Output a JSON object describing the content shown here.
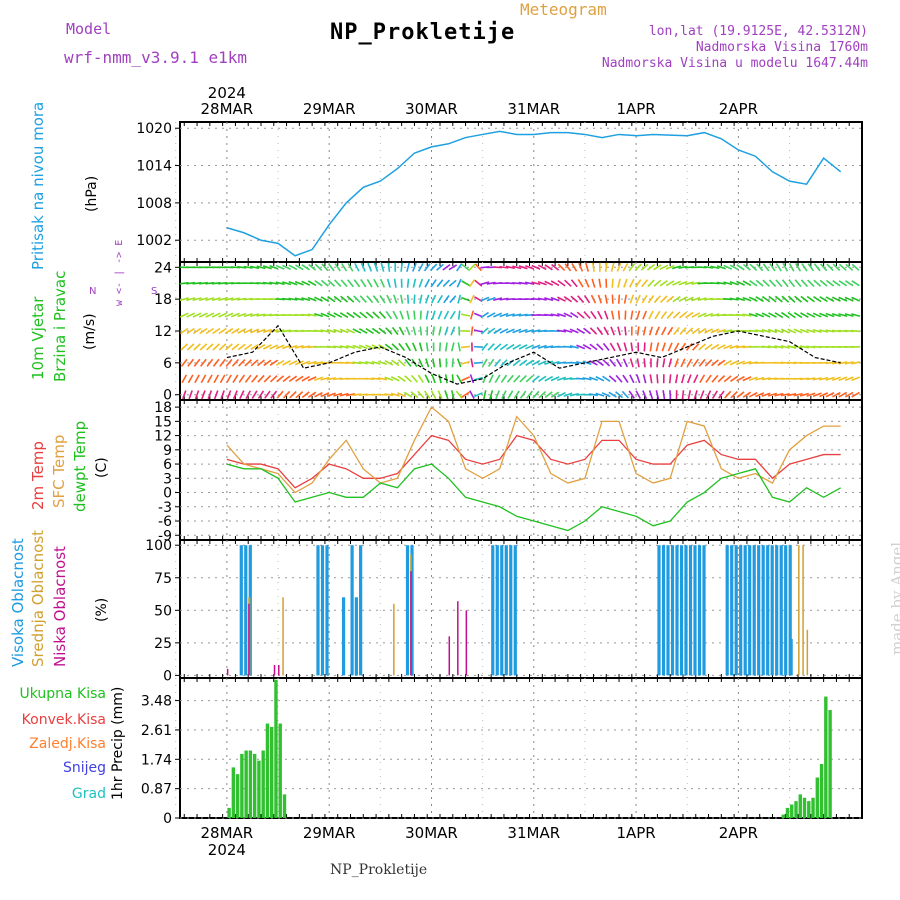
{
  "header": {
    "model_label": "Model",
    "model_name": "wrf-nmm_v3.9.1 e1km",
    "title": "NP_Prokletije",
    "meteogram": "Meteogram",
    "lonlat": "lon,lat (19.9125E, 42.5312N)",
    "altitude": "Nadmorska Visina 1760m",
    "model_altitude": "Nadmorska Visina u modelu 1647.44m"
  },
  "footer": "NP_Prokletije",
  "made_by": "made by Angel",
  "panel_labels": {
    "pressure": "Pritisak na nivou mora",
    "pressure_unit": "(hPa)",
    "wind_1": "10m Vjetar",
    "wind_2": "Brzina i Pravac",
    "wind_unit": "(m/s)",
    "compass": "w <- | -> E",
    "compass_n": "N",
    "compass_s": "S",
    "temp_1": "2m Temp",
    "temp_2": "SFC Temp",
    "temp_3": "dewpt Temp",
    "temp_unit": "(C)",
    "cloud_high": "Visoka Oblacnost",
    "cloud_mid": "Srednja Oblacnost",
    "cloud_low": "Niska Oblacnost",
    "cloud_unit": "(%)",
    "precip_unit": "1hr Precip (mm)",
    "precip_total": "Ukupna Kisa",
    "precip_conv": "Konvek.Kisa",
    "precip_frz": "Zaledj.Kisa",
    "precip_snow": "Snijeg",
    "precip_grad": "Grad"
  },
  "colors": {
    "pressure": "#1fa0e0",
    "temp2m": "#e84040",
    "sfc": "#e0a040",
    "dewpt": "#20c020",
    "cloud_high": "#1f9be0",
    "cloud_mid": "#d0a030",
    "cloud_low": "#c01090",
    "precip": "#30c030",
    "label_purple": "#a040c0"
  },
  "chart_data": [
    {
      "type": "line",
      "name": "pressure",
      "x_days": [
        "28MAR",
        "29MAR",
        "30MAR",
        "31MAR",
        "1APR",
        "2APR"
      ],
      "x_year": "2024",
      "yticks": [
        1002,
        1008,
        1014,
        1020
      ],
      "ylim": [
        998.5,
        1021
      ],
      "grid": true,
      "x_hours": [
        0,
        4,
        8,
        12,
        16,
        20,
        24,
        28,
        32,
        36,
        40,
        44,
        48,
        52,
        56,
        60,
        64,
        68,
        72,
        76,
        80,
        84,
        88,
        92,
        96,
        100,
        104,
        108,
        112,
        116,
        120,
        124,
        128,
        132,
        136,
        140,
        144
      ],
      "values": [
        1004,
        1003.2,
        1002,
        1001.5,
        999.5,
        1000.5,
        1004.5,
        1008,
        1010.5,
        1011.5,
        1013.5,
        1016,
        1017,
        1017.5,
        1018.5,
        1019,
        1019.5,
        1019,
        1019,
        1019.3,
        1019.3,
        1019,
        1018.5,
        1019,
        1018.8,
        1019,
        1018.9,
        1018.8,
        1019.3,
        1018.3,
        1016.5,
        1015.5,
        1013,
        1011.5,
        1011,
        1015.2,
        1013
      ]
    },
    {
      "type": "scatter",
      "name": "wind",
      "yticks": [
        0,
        6,
        12,
        18,
        24
      ],
      "ylim": [
        -1,
        25
      ],
      "grid": true,
      "x_hours": [
        0,
        6,
        12,
        18,
        24,
        30,
        36,
        42,
        48,
        54,
        60,
        66,
        72,
        78,
        84,
        90,
        96,
        102,
        108,
        114,
        120,
        126,
        132,
        138,
        144
      ],
      "speed": [
        7,
        8,
        13,
        5,
        6,
        8,
        9,
        7,
        4,
        2,
        3,
        6,
        8,
        5,
        6,
        7,
        8,
        7,
        9,
        11,
        12,
        11,
        10,
        7,
        6
      ],
      "direction_deg": [
        200,
        210,
        220,
        230,
        250,
        260,
        270,
        300,
        330,
        350,
        10,
        30,
        40,
        60,
        90,
        120,
        150,
        170,
        190,
        210,
        230,
        250,
        260,
        250,
        240
      ]
    },
    {
      "type": "line",
      "name": "temperature",
      "yticks": [
        -9,
        -6,
        -3,
        0,
        3,
        6,
        9,
        12,
        15,
        18
      ],
      "ylim": [
        -10,
        19.5
      ],
      "grid": true,
      "x_hours": [
        0,
        4,
        8,
        12,
        16,
        20,
        24,
        28,
        32,
        36,
        40,
        44,
        48,
        52,
        56,
        60,
        64,
        68,
        72,
        76,
        80,
        84,
        88,
        92,
        96,
        100,
        104,
        108,
        112,
        116,
        120,
        124,
        128,
        132,
        136,
        140,
        144
      ],
      "series": [
        {
          "name": "2m Temp",
          "values": [
            7,
            6,
            6,
            5,
            1,
            3,
            6,
            5,
            3,
            3,
            4,
            8,
            12,
            11,
            7,
            6,
            7,
            12,
            11,
            7,
            6,
            7,
            11,
            11,
            7,
            6,
            6,
            10,
            11,
            8,
            7,
            7,
            3,
            6,
            7,
            8,
            8
          ]
        },
        {
          "name": "SFC Temp",
          "values": [
            10,
            6,
            5,
            4,
            0,
            2,
            7,
            11,
            5,
            2,
            3,
            11,
            18,
            15,
            5,
            3,
            5,
            16,
            12,
            4,
            2,
            3,
            15,
            15,
            4,
            2,
            3,
            15,
            14,
            5,
            3,
            4,
            2,
            9,
            12,
            14,
            14
          ]
        },
        {
          "name": "dewpt Temp",
          "values": [
            6,
            5,
            5,
            3,
            -2,
            -1,
            0,
            -1,
            -1,
            2,
            1,
            5,
            6,
            3,
            -1,
            -2,
            -3,
            -5,
            -6,
            -7,
            -8,
            -6,
            -3,
            -4,
            -5,
            -7,
            -6,
            -2,
            0,
            3,
            4,
            5,
            -1,
            -2,
            1,
            -1,
            1
          ]
        }
      ]
    },
    {
      "type": "bar",
      "name": "clouds",
      "yticks": [
        0,
        25,
        50,
        75,
        100
      ],
      "ylim": [
        -2,
        104
      ],
      "grid": true,
      "series": [
        {
          "name": "Visoka Oblacnost",
          "spans_hours": [
            [
              3,
              6
            ],
            [
              21,
              24
            ],
            [
              27,
              28
            ],
            [
              29,
              30
            ],
            [
              30,
              31
            ],
            [
              31,
              32
            ],
            [
              42,
              44
            ],
            [
              62,
              68
            ],
            [
              101,
              112
            ],
            [
              117,
              132
            ],
            [
              132,
              133
            ]
          ],
          "values": [
            100,
            100,
            60,
            100,
            60,
            100,
            100,
            100,
            100,
            100,
            28
          ]
        },
        {
          "name": "Srednja Oblacnost",
          "spans_hours": [
            [
              5,
              5.5
            ],
            [
              13,
              13.3
            ],
            [
              39,
              39.3
            ],
            [
              43,
              43.3
            ],
            [
              134,
              134.3
            ],
            [
              135,
              135.3
            ],
            [
              136,
              136.3
            ]
          ],
          "values": [
            60,
            60,
            55,
            93,
            100,
            100,
            35
          ]
        },
        {
          "name": "Niska Oblacnost",
          "spans_hours": [
            [
              0,
              0.3
            ],
            [
              5,
              5.3
            ],
            [
              11,
              11.3
            ],
            [
              12,
              12.3
            ],
            [
              43,
              43.3
            ],
            [
              52,
              52.3
            ],
            [
              54,
              54.3
            ],
            [
              56,
              56.3
            ]
          ],
          "values": [
            5,
            55,
            8,
            8,
            80,
            30,
            57,
            50
          ]
        }
      ]
    },
    {
      "type": "bar",
      "name": "precipitation",
      "yticks": [
        0,
        0.87,
        1.74,
        2.61,
        3.48
      ],
      "ylim": [
        0,
        4.15
      ],
      "grid": true,
      "bar_hours": [
        0,
        1,
        2,
        3,
        4,
        5,
        6,
        7,
        8,
        9,
        10,
        11,
        12,
        13,
        14,
        130,
        131,
        132,
        133,
        134,
        135,
        136,
        137,
        138,
        139,
        140,
        141
      ],
      "values": [
        0.3,
        1.5,
        1.3,
        1.9,
        2.0,
        2.0,
        1.9,
        1.7,
        2.0,
        2.8,
        2.7,
        4.1,
        2.8,
        0.7,
        0,
        0.1,
        0.3,
        0.4,
        0.5,
        0.7,
        0.6,
        0.5,
        0.6,
        1.2,
        1.6,
        3.6,
        3.2
      ]
    }
  ]
}
